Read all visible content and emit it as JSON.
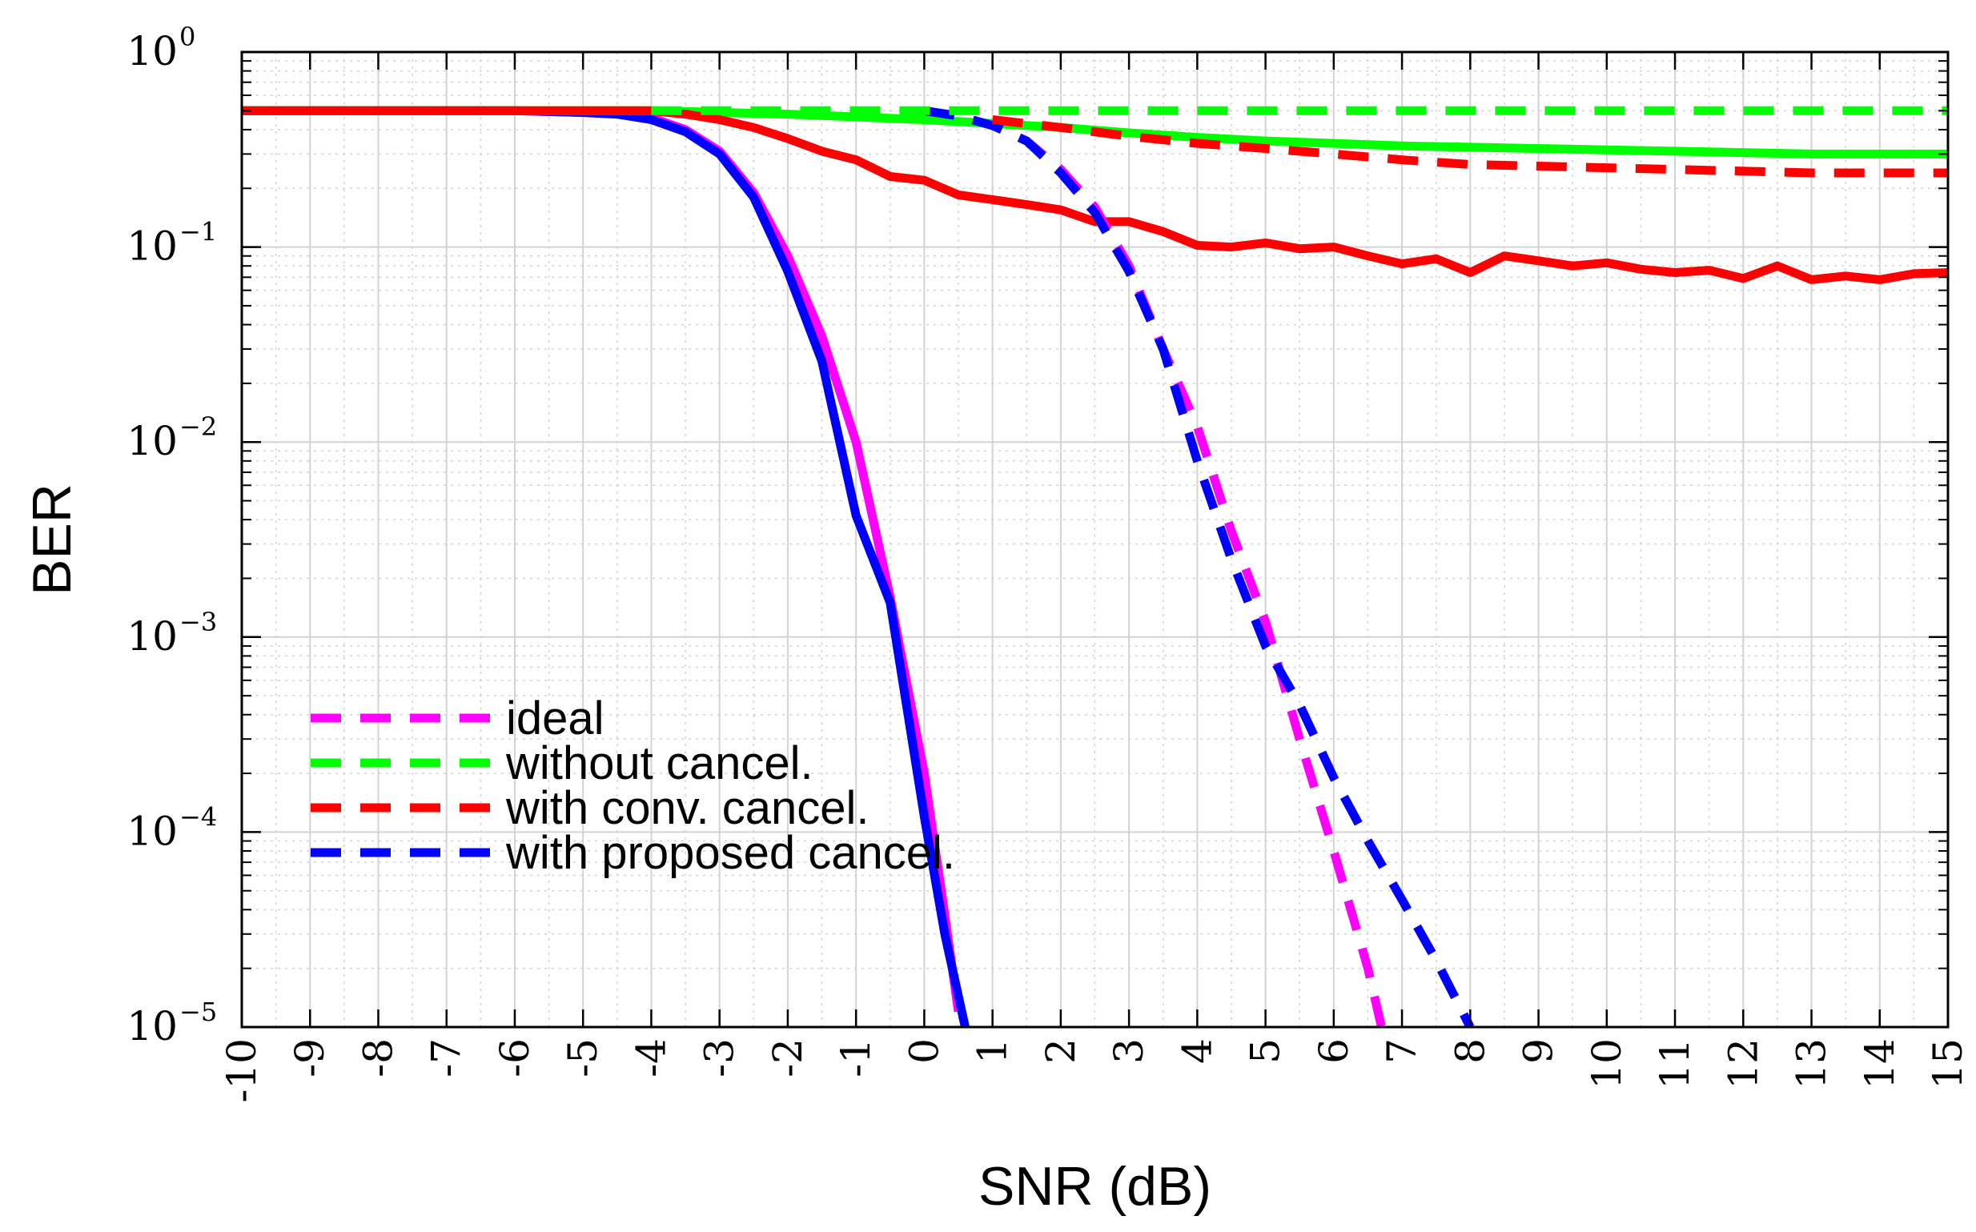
{
  "chart_data": {
    "type": "line",
    "title": "",
    "xlabel": "SNR (dB)",
    "ylabel": "BER",
    "yscale": "log",
    "xlim": [
      -10,
      15
    ],
    "ylim": [
      1e-05,
      1
    ],
    "grid": true,
    "minor_grid": true,
    "legend_position": "bottom-left",
    "x_ticks": [
      {
        "value": -10,
        "label": "-10"
      },
      {
        "value": -9,
        "label": "-9"
      },
      {
        "value": -8,
        "label": "-8"
      },
      {
        "value": -7,
        "label": "-7"
      },
      {
        "value": -6,
        "label": "-6"
      },
      {
        "value": -5,
        "label": "-5"
      },
      {
        "value": -4,
        "label": "-4"
      },
      {
        "value": -3,
        "label": "-3"
      },
      {
        "value": -2,
        "label": "-2"
      },
      {
        "value": -1,
        "label": "-1"
      },
      {
        "value": 0,
        "label": "0"
      },
      {
        "value": 1,
        "label": "1"
      },
      {
        "value": 2,
        "label": "2"
      },
      {
        "value": 3,
        "label": "3"
      },
      {
        "value": 4,
        "label": "4"
      },
      {
        "value": 5,
        "label": "5"
      },
      {
        "value": 6,
        "label": "6"
      },
      {
        "value": 7,
        "label": "7"
      },
      {
        "value": 8,
        "label": "8"
      },
      {
        "value": 9,
        "label": "9"
      },
      {
        "value": 10,
        "label": "10"
      },
      {
        "value": 11,
        "label": "11"
      },
      {
        "value": 12,
        "label": "12"
      },
      {
        "value": 13,
        "label": "13"
      },
      {
        "value": 14,
        "label": "14"
      },
      {
        "value": 15,
        "label": "15"
      }
    ],
    "y_ticks": [
      {
        "value": 1,
        "base": "10",
        "exp": "0"
      },
      {
        "value": 0.1,
        "base": "10",
        "exp": "−1"
      },
      {
        "value": 0.01,
        "base": "10",
        "exp": "−2"
      },
      {
        "value": 0.001,
        "base": "10",
        "exp": "−3"
      },
      {
        "value": 0.0001,
        "base": "10",
        "exp": "−4"
      },
      {
        "value": 1e-05,
        "base": "10",
        "exp": "−5"
      }
    ],
    "legend": [
      {
        "label": "ideal",
        "color": "#ff00ff",
        "dash": "dashed"
      },
      {
        "label": "without cancel.",
        "color": "#00ff00",
        "dash": "dashed"
      },
      {
        "label": "with conv. cancel.",
        "color": "#ff0000",
        "dash": "dashed"
      },
      {
        "label": "with proposed cancel.",
        "color": "#0000ff",
        "dash": "dashed"
      }
    ],
    "series": [
      {
        "name": "ideal (solid)",
        "color": "#ff00ff",
        "dash": "solid",
        "x": [
          -10,
          -9,
          -8,
          -7,
          -6,
          -5,
          -4.5,
          -4,
          -3.5,
          -3,
          -2.5,
          -2,
          -1.5,
          -1,
          -0.5,
          0,
          0.25,
          0.5
        ],
        "y": [
          0.5,
          0.5,
          0.5,
          0.5,
          0.5,
          0.49,
          0.48,
          0.46,
          0.4,
          0.31,
          0.19,
          0.09,
          0.035,
          0.01,
          0.0016,
          0.0002,
          5e-05,
          1.2e-05
        ]
      },
      {
        "name": "with proposed cancel. (solid)",
        "color": "#0000ff",
        "dash": "solid",
        "x": [
          -10,
          -9,
          -8,
          -7,
          -6,
          -5,
          -4.5,
          -4,
          -3.5,
          -3,
          -2.5,
          -2,
          -1.5,
          -1,
          -0.5,
          0,
          0.3,
          0.6
        ],
        "y": [
          0.5,
          0.5,
          0.5,
          0.5,
          0.5,
          0.49,
          0.48,
          0.45,
          0.39,
          0.3,
          0.18,
          0.075,
          0.026,
          0.0042,
          0.0015,
          0.00012,
          3e-05,
          1e-05
        ]
      },
      {
        "name": "without cancel. (solid)",
        "color": "#00ff00",
        "dash": "solid",
        "x": [
          -10,
          -8,
          -6,
          -4,
          -3,
          -2,
          -1,
          0,
          1,
          2,
          3,
          4,
          5,
          6,
          7,
          8,
          9,
          10,
          11,
          12,
          13,
          14,
          15
        ],
        "y": [
          0.5,
          0.5,
          0.5,
          0.5,
          0.49,
          0.48,
          0.465,
          0.45,
          0.43,
          0.41,
          0.385,
          0.365,
          0.35,
          0.34,
          0.33,
          0.325,
          0.32,
          0.315,
          0.31,
          0.305,
          0.3,
          0.3,
          0.3
        ]
      },
      {
        "name": "with conv. cancel. (solid)",
        "color": "#ff0000",
        "dash": "solid",
        "x": [
          -10,
          -8,
          -6,
          -4,
          -3.5,
          -3,
          -2.5,
          -2,
          -1.5,
          -1,
          -0.5,
          0,
          0.5,
          1,
          1.5,
          2,
          2.5,
          3,
          3.5,
          4,
          4.5,
          5,
          5.5,
          6,
          6.5,
          7,
          7.5,
          8,
          8.5,
          9,
          9.5,
          10,
          10.5,
          11,
          11.5,
          12,
          12.5,
          13,
          13.5,
          14,
          14.5,
          15
        ],
        "y": [
          0.5,
          0.5,
          0.5,
          0.5,
          0.48,
          0.45,
          0.41,
          0.36,
          0.31,
          0.28,
          0.23,
          0.22,
          0.185,
          0.175,
          0.165,
          0.155,
          0.135,
          0.135,
          0.12,
          0.102,
          0.1,
          0.105,
          0.098,
          0.1,
          0.09,
          0.082,
          0.087,
          0.074,
          0.09,
          0.085,
          0.08,
          0.083,
          0.077,
          0.074,
          0.076,
          0.069,
          0.08,
          0.068,
          0.071,
          0.068,
          0.073,
          0.074
        ]
      },
      {
        "name": "ideal",
        "color": "#ff00ff",
        "dash": "dashed",
        "x": [
          0,
          0.5,
          1,
          1.5,
          2,
          2.5,
          3,
          3.5,
          4,
          4.5,
          5,
          5.5,
          6,
          6.5,
          6.7
        ],
        "y": [
          0.5,
          0.47,
          0.42,
          0.35,
          0.25,
          0.16,
          0.08,
          0.03,
          0.012,
          0.0035,
          0.0012,
          0.0003,
          8e-05,
          2e-05,
          1e-05
        ]
      },
      {
        "name": "with proposed cancel.",
        "color": "#0000ff",
        "dash": "dashed",
        "x": [
          0,
          0.5,
          1,
          1.5,
          2,
          2.5,
          3,
          3.5,
          4,
          4.5,
          5,
          5.5,
          6,
          6.5,
          7,
          7.5,
          8
        ],
        "y": [
          0.5,
          0.47,
          0.42,
          0.35,
          0.24,
          0.15,
          0.075,
          0.03,
          0.008,
          0.0025,
          0.0009,
          0.00045,
          0.00019,
          9e-05,
          4.5e-05,
          2.2e-05,
          1e-05
        ]
      },
      {
        "name": "without cancel.",
        "color": "#00ff00",
        "dash": "dashed",
        "x": [
          -4,
          -2,
          0,
          2,
          4,
          6,
          8,
          10,
          12,
          14,
          15
        ],
        "y": [
          0.5,
          0.5,
          0.5,
          0.5,
          0.5,
          0.5,
          0.5,
          0.5,
          0.5,
          0.5,
          0.5
        ]
      },
      {
        "name": "with conv. cancel.",
        "color": "#ff0000",
        "dash": "dashed",
        "x": [
          1,
          2,
          3,
          4,
          5,
          6,
          7,
          8,
          9,
          10,
          11,
          12,
          13,
          14,
          15
        ],
        "y": [
          0.45,
          0.41,
          0.37,
          0.34,
          0.32,
          0.3,
          0.28,
          0.265,
          0.26,
          0.255,
          0.25,
          0.245,
          0.24,
          0.24,
          0.24
        ]
      }
    ]
  }
}
